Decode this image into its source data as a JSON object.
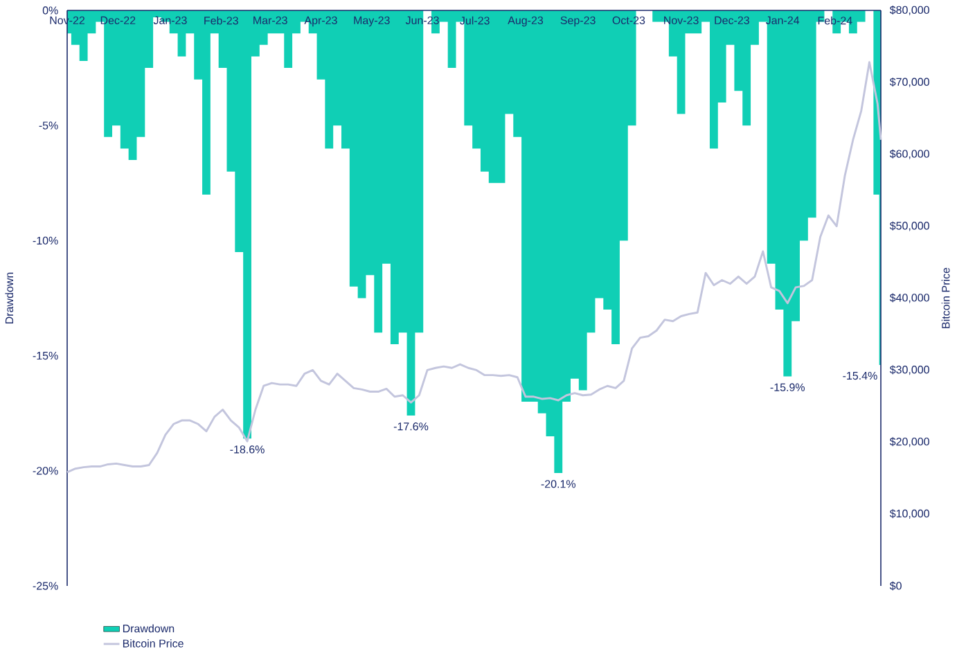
{
  "chart_data": {
    "type": "area",
    "ylabel": "Drawdown",
    "y2label": "Bitcoin Price",
    "x": [
      "2022-11-09",
      "2022-11-14",
      "2022-11-19",
      "2022-11-24",
      "2022-11-29",
      "2022-12-04",
      "2022-12-09",
      "2022-12-14",
      "2022-12-19",
      "2022-12-24",
      "2022-12-29",
      "2023-01-03",
      "2023-01-08",
      "2023-01-13",
      "2023-01-18",
      "2023-01-23",
      "2023-01-28",
      "2023-02-02",
      "2023-02-07",
      "2023-02-12",
      "2023-02-17",
      "2023-02-22",
      "2023-02-27",
      "2023-03-04",
      "2023-03-09",
      "2023-03-14",
      "2023-03-19",
      "2023-03-24",
      "2023-03-29",
      "2023-04-03",
      "2023-04-08",
      "2023-04-13",
      "2023-04-18",
      "2023-04-23",
      "2023-04-28",
      "2023-05-03",
      "2023-05-08",
      "2023-05-13",
      "2023-05-18",
      "2023-05-23",
      "2023-05-28",
      "2023-06-02",
      "2023-06-07",
      "2023-06-12",
      "2023-06-17",
      "2023-06-22",
      "2023-06-27",
      "2023-07-02",
      "2023-07-07",
      "2023-07-12",
      "2023-07-17",
      "2023-07-22",
      "2023-07-27",
      "2023-08-01",
      "2023-08-06",
      "2023-08-11",
      "2023-08-16",
      "2023-08-21",
      "2023-08-26",
      "2023-08-31",
      "2023-09-05",
      "2023-09-10",
      "2023-09-15",
      "2023-09-20",
      "2023-09-25",
      "2023-09-30",
      "2023-10-05",
      "2023-10-10",
      "2023-10-15",
      "2023-10-20",
      "2023-10-25",
      "2023-10-30",
      "2023-11-04",
      "2023-11-09",
      "2023-11-14",
      "2023-11-19",
      "2023-11-24",
      "2023-11-29",
      "2023-12-04",
      "2023-12-09",
      "2023-12-14",
      "2023-12-19",
      "2023-12-24",
      "2023-12-29",
      "2024-01-03",
      "2024-01-08",
      "2024-01-13",
      "2024-01-18",
      "2024-01-23",
      "2024-01-28",
      "2024-02-02",
      "2024-02-07",
      "2024-02-12",
      "2024-02-17",
      "2024-02-22",
      "2024-02-27",
      "2024-03-03",
      "2024-03-08",
      "2024-03-13",
      "2024-03-18",
      "2024-03-20"
    ],
    "series": [
      {
        "name": "Drawdown",
        "color": "#10cfb5",
        "values": [
          -1,
          -1.5,
          -2.2,
          -1,
          -0.5,
          -5.5,
          -5,
          -6,
          -6.5,
          -5.5,
          -2.5,
          -0.3,
          -0.5,
          -1,
          -2,
          -1,
          -3,
          -8,
          -1,
          -2.5,
          -7,
          -10.5,
          -18.6,
          -2,
          -1.5,
          -1,
          -1,
          -2.5,
          -1,
          -0.5,
          -1,
          -3,
          -6,
          -5,
          -6,
          -12,
          -12.5,
          -11.5,
          -14,
          -11,
          -14.5,
          -14,
          -17.6,
          -14,
          0,
          -1,
          -0.5,
          -2.5,
          -0.5,
          -5,
          -6,
          -7,
          -7.5,
          -7.5,
          -4.5,
          -5.5,
          -17,
          -17,
          -17.5,
          -18.5,
          -20.1,
          -17,
          -16,
          -16.5,
          -14,
          -12.5,
          -13,
          -14.5,
          -10,
          -5,
          0,
          0,
          -0.5,
          -0.5,
          -2,
          -4.5,
          -1,
          -1,
          -0.5,
          -6,
          -4,
          -1.5,
          -3.5,
          -5,
          -1.5,
          -0.5,
          -11,
          -13,
          -15.9,
          -13.5,
          -10,
          -9,
          -0.5,
          0,
          -1,
          -0.5,
          -1,
          -0.5,
          0,
          -8,
          -15.4
        ]
      },
      {
        "name": "Bitcoin Price",
        "type": "line",
        "axis": "y2",
        "color": "#c3c5dd",
        "values": [
          15800,
          16300,
          16500,
          16600,
          16600,
          16900,
          17000,
          16800,
          16600,
          16600,
          16800,
          18500,
          21000,
          22500,
          23000,
          23000,
          22500,
          21500,
          23500,
          24500,
          23000,
          22000,
          20100,
          24500,
          27800,
          28200,
          28000,
          28000,
          27800,
          29500,
          30000,
          28500,
          28000,
          29500,
          28500,
          27500,
          27300,
          27000,
          27000,
          27400,
          26300,
          26500,
          25500,
          26500,
          30000,
          30300,
          30500,
          30300,
          30800,
          30300,
          30000,
          29300,
          29300,
          29200,
          29300,
          29000,
          26300,
          26300,
          26000,
          26100,
          25800,
          26500,
          26800,
          26500,
          26600,
          27300,
          27800,
          27500,
          28500,
          33000,
          34500,
          34700,
          35500,
          37000,
          36800,
          37500,
          37800,
          38000,
          43500,
          41800,
          42500,
          42000,
          43000,
          42000,
          43000,
          46500,
          41500,
          41000,
          39300,
          41500,
          41700,
          42500,
          48500,
          51500,
          50000,
          57000,
          62000,
          66000,
          72800,
          67000,
          62000
        ]
      }
    ],
    "xlim": [
      "2022-11-09",
      "2024-03-20"
    ],
    "xticks": [
      {
        "value": "2022-11-09",
        "label": "Nov-22"
      },
      {
        "value": "2022-12-10",
        "label": "Dec-22"
      },
      {
        "value": "2023-01-11",
        "label": "Jan-23"
      },
      {
        "value": "2023-02-11",
        "label": "Feb-23"
      },
      {
        "value": "2023-03-13",
        "label": "Mar-23"
      },
      {
        "value": "2023-04-13",
        "label": "Apr-23"
      },
      {
        "value": "2023-05-14",
        "label": "May-23"
      },
      {
        "value": "2023-06-14",
        "label": "Jun-23"
      },
      {
        "value": "2023-07-16",
        "label": "Jul-23"
      },
      {
        "value": "2023-08-16",
        "label": "Aug-23"
      },
      {
        "value": "2023-09-17",
        "label": "Sep-23"
      },
      {
        "value": "2023-10-18",
        "label": "Oct-23"
      },
      {
        "value": "2023-11-19",
        "label": "Nov-23"
      },
      {
        "value": "2023-12-20",
        "label": "Dec-23"
      },
      {
        "value": "2024-01-20",
        "label": "Jan-24"
      },
      {
        "value": "2024-02-21",
        "label": "Feb-24"
      }
    ],
    "ylim": [
      -25,
      0
    ],
    "yticks": [
      {
        "value": -25,
        "label": "-25%"
      },
      {
        "value": -20,
        "label": "-20%"
      },
      {
        "value": -15,
        "label": "-15%"
      },
      {
        "value": -10,
        "label": "-10%"
      },
      {
        "value": -5,
        "label": "-5%"
      },
      {
        "value": 0,
        "label": "0%"
      }
    ],
    "y2lim": [
      0,
      80000
    ],
    "y2ticks": [
      {
        "value": 0,
        "label": "$0"
      },
      {
        "value": 10000,
        "label": "$10,000"
      },
      {
        "value": 20000,
        "label": "$20,000"
      },
      {
        "value": 30000,
        "label": "$30,000"
      },
      {
        "value": 40000,
        "label": "$40,000"
      },
      {
        "value": 50000,
        "label": "$50,000"
      },
      {
        "value": 60000,
        "label": "$60,000"
      },
      {
        "value": 70000,
        "label": "$70,000"
      },
      {
        "value": 80000,
        "label": "$80,000"
      }
    ],
    "annotations": [
      {
        "text": "-18.6%",
        "x": "2023-02-27",
        "y": -18.6
      },
      {
        "text": "-17.6%",
        "x": "2023-06-07",
        "y": -17.6
      },
      {
        "text": "-20.1%",
        "x": "2023-09-05",
        "y": -20.1
      },
      {
        "text": "-15.9%",
        "x": "2024-01-23",
        "y": -15.9
      },
      {
        "text": "-15.4%",
        "x": "2024-03-20",
        "y": -15.4
      }
    ],
    "legend": "bottom left",
    "grid": false
  }
}
